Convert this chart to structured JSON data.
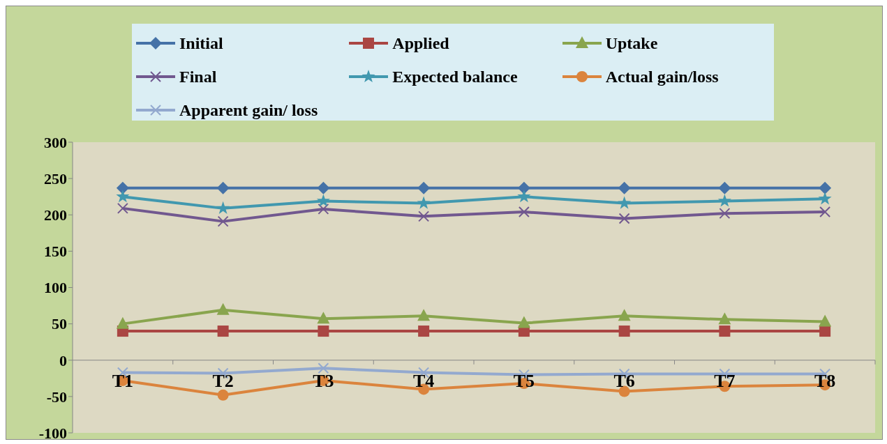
{
  "chart_data": {
    "type": "line",
    "categories": [
      "T1",
      "T2",
      "T3",
      "T4",
      "T5",
      "T6",
      "T7",
      "T8"
    ],
    "series": [
      {
        "name": "Initial",
        "color": "#4572a7",
        "marker": "diamond",
        "values": [
          237,
          237,
          237,
          237,
          237,
          237,
          237,
          237
        ]
      },
      {
        "name": "Applied",
        "color": "#aa4643",
        "marker": "square",
        "values": [
          40,
          40,
          40,
          40,
          40,
          40,
          40,
          40
        ]
      },
      {
        "name": "Uptake",
        "color": "#89a54e",
        "marker": "triangle",
        "values": [
          50,
          69,
          57,
          61,
          51,
          61,
          56,
          53
        ]
      },
      {
        "name": "Final",
        "color": "#71588f",
        "marker": "cross",
        "values": [
          209,
          191,
          208,
          198,
          204,
          195,
          202,
          204
        ]
      },
      {
        "name": "Expected balance",
        "color": "#4198af",
        "marker": "star",
        "values": [
          225,
          209,
          219,
          216,
          225,
          216,
          219,
          222
        ]
      },
      {
        "name": "Actual gain/loss",
        "color": "#db843d",
        "marker": "circle",
        "values": [
          -28,
          -48,
          -28,
          -40,
          -32,
          -43,
          -36,
          -34
        ]
      },
      {
        "name": "Apparent gain/ loss",
        "color": "#93a9cf",
        "marker": "cross",
        "values": [
          -17,
          -18,
          -11,
          -17,
          -20,
          -19,
          -19,
          -19
        ]
      }
    ],
    "ylim": [
      -100,
      300
    ],
    "yticks": [
      -100,
      -50,
      0,
      50,
      100,
      150,
      200,
      250,
      300
    ],
    "legend": "top"
  }
}
